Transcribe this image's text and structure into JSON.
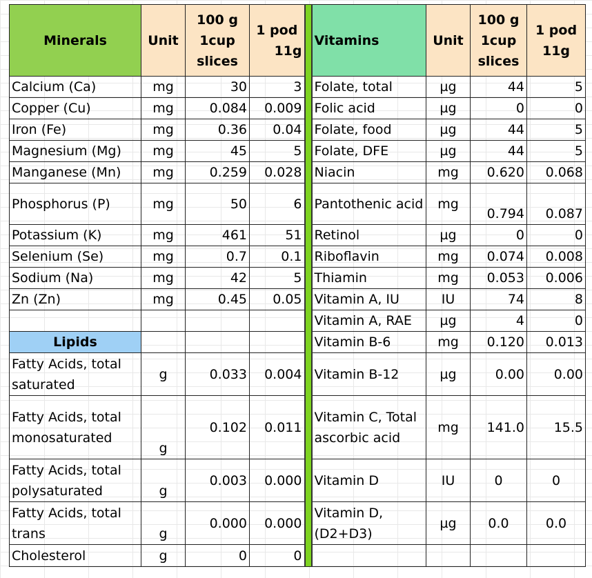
{
  "headers": {
    "minerals": "Minerals",
    "unit": "Unit",
    "per100_lines": [
      "100 g",
      "1cup",
      "slices"
    ],
    "pod_lines": [
      "1 pod",
      "11g"
    ],
    "vitamins": "Vitamins"
  },
  "lipids_label": "Lipids",
  "rows": [
    {
      "ml": "Calcium (Ca)",
      "mu": "mg",
      "m1": "30",
      "m2": "3",
      "vl": "Folate, total",
      "vu": "µg",
      "v1": "44",
      "v2": "5"
    },
    {
      "ml": "Copper (Cu)",
      "mu": "mg",
      "m1": "0.084",
      "m2": "0.009",
      "vl": "Folic acid",
      "vu": "µg",
      "v1": "0",
      "v2": "0"
    },
    {
      "ml": "Iron (Fe)",
      "mu": "mg",
      "m1": "0.36",
      "m2": "0.04",
      "vl": "Folate, food",
      "vu": "µg",
      "v1": "44",
      "v2": "5"
    },
    {
      "ml": "Magnesium (Mg)",
      "mu": "mg",
      "m1": "45",
      "m2": "5",
      "vl": "Folate, DFE",
      "vu": "µg",
      "v1": "44",
      "v2": "5"
    },
    {
      "ml": "Manganese (Mn)",
      "mu": "mg",
      "m1": "0.259",
      "m2": "0.028",
      "vl": "Niacin",
      "vu": "mg",
      "v1": "0.620",
      "v2": "0.068"
    },
    {
      "ml": "Phosphorus (P)",
      "mu": "mg",
      "m1": "50",
      "m2": "6",
      "vl": "Pantothenic acid",
      "vu": "mg",
      "v1": "0.794",
      "v2": "0.087"
    },
    {
      "ml": "Potassium (K)",
      "mu": "mg",
      "m1": "461",
      "m2": "51",
      "vl": "Retinol",
      "vu": "µg",
      "v1": "0",
      "v2": "0"
    },
    {
      "ml": "Selenium (Se)",
      "mu": "mg",
      "m1": "0.7",
      "m2": "0.1",
      "vl": "Riboflavin",
      "vu": "mg",
      "v1": "0.074",
      "v2": "0.008"
    },
    {
      "ml": "Sodium (Na)",
      "mu": "mg",
      "m1": "42",
      "m2": "5",
      "vl": "Thiamin",
      "vu": "mg",
      "v1": "0.053",
      "v2": "0.006"
    },
    {
      "ml": "Zn (Zn)",
      "mu": "mg",
      "m1": "0.45",
      "m2": "0.05",
      "vl": "Vitamin A, IU",
      "vu": "IU",
      "v1": "74",
      "v2": "8"
    },
    {
      "ml": "",
      "mu": "",
      "m1": "",
      "m2": "",
      "vl": "Vitamin A, RAE",
      "vu": "µg",
      "v1": "4",
      "v2": "0"
    },
    {
      "ml": "Lipids",
      "mu": "",
      "m1": "",
      "m2": "",
      "vl": "Vitamin B-6",
      "vu": "mg",
      "v1": "0.120",
      "v2": "0.013"
    },
    {
      "ml": "Fatty Acids, total saturated",
      "mu": "g",
      "m1": "0.033",
      "m2": "0.004",
      "vl": "Vitamin B-12",
      "vu": "µg",
      "v1": "0.00",
      "v2": "0.00"
    },
    {
      "ml": "Fatty Acids, total monosaturated",
      "mu": "g",
      "m1": "0.102",
      "m2": "0.011",
      "vl": "Vitamin C, Total ascorbic acid",
      "vu": "mg",
      "v1": "141.0",
      "v2": "15.5"
    },
    {
      "ml": "Fatty Acids, total polysaturated",
      "mu": "g",
      "m1": "0.003",
      "m2": "0.000",
      "vl": "Vitamin D",
      "vu": "IU",
      "v1": "0",
      "v2": "0"
    },
    {
      "ml": "Fatty Acids, total trans",
      "mu": "g",
      "m1": "0.000",
      "m2": "0.000",
      "vl": "Vitamin D, (D2+D3)",
      "vu": "µg",
      "v1": "0.0",
      "v2": "0.0"
    },
    {
      "ml": "Cholesterol",
      "mu": "g",
      "m1": "0",
      "m2": "0",
      "vl": "",
      "vu": "",
      "v1": "",
      "v2": ""
    }
  ]
}
